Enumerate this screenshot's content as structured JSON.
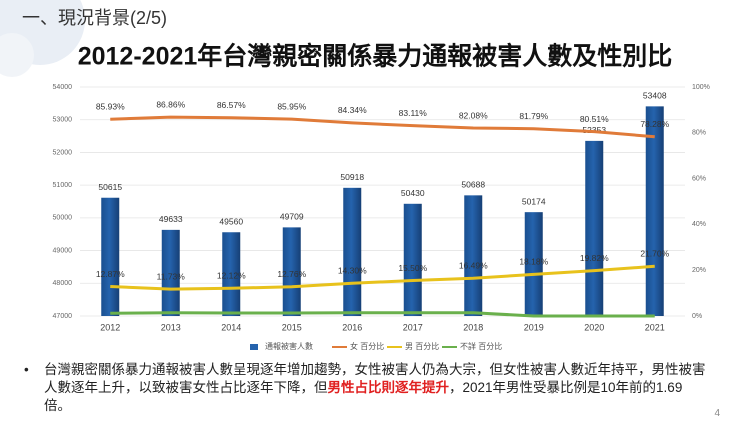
{
  "slide": {
    "header": "一、現況背景(2/5)",
    "page_number": "4",
    "bullet": [
      "台灣親密關係暴力通報被害人數呈現逐年增加趨勢，女性被害人仍為大宗，但女性被害人數近年持平，男性被害人數逐年上升，以致被害女性占比逐年下降，但",
      "男性占比則逐年提升",
      "，2021年男性受暴比例是10年前的1.69倍。"
    ]
  },
  "chart_data": {
    "type": "bar",
    "title": "2012-2021年台灣親密關係暴力通報被害人數及性別比",
    "categories": [
      "2012",
      "2013",
      "2014",
      "2015",
      "2016",
      "2017",
      "2018",
      "2019",
      "2020",
      "2021"
    ],
    "series": [
      {
        "name": "通報被害人數",
        "type": "bar",
        "color": "#2563ad",
        "values": [
          50615,
          49633,
          49560,
          49709,
          50918,
          50430,
          50688,
          50174,
          52353,
          53408
        ]
      },
      {
        "name": "女 百分比",
        "type": "line",
        "axis": "y2",
        "color": "#e07b39",
        "values": [
          85.93,
          86.86,
          86.57,
          85.95,
          84.34,
          83.11,
          82.08,
          81.79,
          80.51,
          78.28
        ],
        "value_labels": [
          "85.93%",
          "86.86%",
          "86.57%",
          "85.95%",
          "84.34%",
          "83.11%",
          "82.08%",
          "81.79%",
          "80.51%",
          "78.28%"
        ]
      },
      {
        "name": "男 百分比",
        "type": "line",
        "axis": "y2",
        "color": "#e8c21c",
        "values": [
          12.87,
          11.73,
          12.12,
          12.76,
          14.3,
          15.5,
          16.49,
          18.18,
          19.82,
          21.7
        ],
        "value_labels": [
          "12.87%",
          "11.73%",
          "12.12%",
          "12.76%",
          "14.30%",
          "15.50%",
          "16.49%",
          "18.18%",
          "19.82%",
          "21.70%"
        ]
      },
      {
        "name": "不詳 百分比",
        "type": "line",
        "axis": "y2",
        "color": "#6ab04c",
        "values": [
          1.2,
          1.4,
          1.3,
          1.3,
          1.4,
          1.4,
          1.4,
          0,
          0,
          0
        ]
      }
    ],
    "ylim": [
      47000,
      54000
    ],
    "yticks": [
      47000,
      48000,
      49000,
      50000,
      51000,
      52000,
      53000,
      54000
    ],
    "y2lim": [
      0,
      100
    ],
    "y2ticks": [
      {
        "value": 0,
        "label": "0%"
      },
      {
        "value": 20,
        "label": "20%"
      },
      {
        "value": 40,
        "label": "40%"
      },
      {
        "value": 60,
        "label": "60%"
      },
      {
        "value": 80,
        "label": "80%"
      },
      {
        "value": 100,
        "label": "100%"
      }
    ],
    "grid": true,
    "legend": "bottom"
  }
}
